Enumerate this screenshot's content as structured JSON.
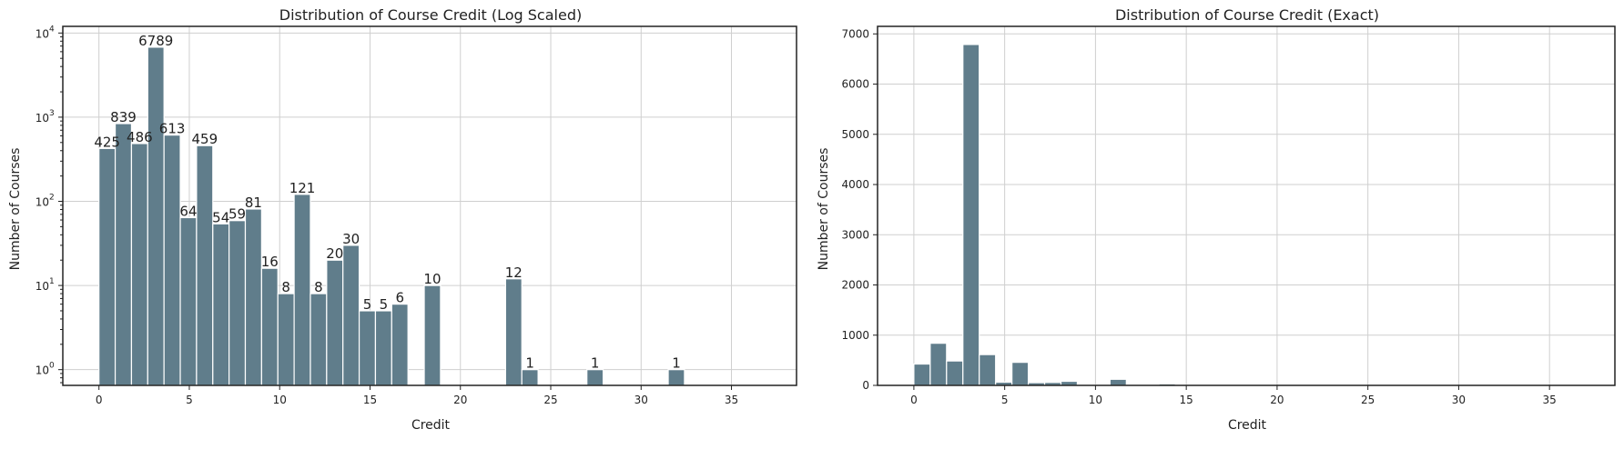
{
  "chart_data": [
    {
      "type": "bar",
      "title": "Distribution of Course Credit (Log Scaled)",
      "xlabel": "Credit",
      "ylabel": "Number of Courses",
      "yscale": "log",
      "xlim": [
        -2,
        38.6
      ],
      "ylim": [
        0.65,
        12000
      ],
      "xticks": [
        0,
        5,
        10,
        15,
        20,
        25,
        30,
        35
      ],
      "yticks": [
        {
          "value": 1,
          "base": "10",
          "exp": "0"
        },
        {
          "value": 10,
          "base": "10",
          "exp": "1"
        },
        {
          "value": 100,
          "base": "10",
          "exp": "2"
        },
        {
          "value": 1000,
          "base": "10",
          "exp": "3"
        },
        {
          "value": 10000,
          "base": "10",
          "exp": "4"
        }
      ],
      "grid": true,
      "bar_color": "#607d8b",
      "bin_width": 0.9,
      "bars": [
        {
          "x": 0,
          "value": 425,
          "label": "425"
        },
        {
          "x": 0.9,
          "value": 839,
          "label": "839"
        },
        {
          "x": 1.8,
          "value": 486,
          "label": "486"
        },
        {
          "x": 2.7,
          "value": 6789,
          "label": "6789"
        },
        {
          "x": 3.6,
          "value": 613,
          "label": "613"
        },
        {
          "x": 4.5,
          "value": 64,
          "label": "64"
        },
        {
          "x": 5.4,
          "value": 459,
          "label": "459"
        },
        {
          "x": 6.3,
          "value": 54,
          "label": "54"
        },
        {
          "x": 7.2,
          "value": 59,
          "label": "59"
        },
        {
          "x": 8.1,
          "value": 81,
          "label": "81"
        },
        {
          "x": 9.0,
          "value": 16,
          "label": "16"
        },
        {
          "x": 9.9,
          "value": 8,
          "label": "8"
        },
        {
          "x": 10.8,
          "value": 121,
          "label": "121"
        },
        {
          "x": 11.7,
          "value": 8,
          "label": "8"
        },
        {
          "x": 12.6,
          "value": 20,
          "label": "20"
        },
        {
          "x": 13.5,
          "value": 30,
          "label": "30"
        },
        {
          "x": 14.4,
          "value": 5,
          "label": "5"
        },
        {
          "x": 15.3,
          "value": 5,
          "label": "5"
        },
        {
          "x": 16.2,
          "value": 6,
          "label": "6"
        },
        {
          "x": 18.0,
          "value": 10,
          "label": "10"
        },
        {
          "x": 22.5,
          "value": 12,
          "label": "12"
        },
        {
          "x": 23.4,
          "value": 1,
          "label": "1"
        },
        {
          "x": 27.0,
          "value": 1,
          "label": "1"
        },
        {
          "x": 31.5,
          "value": 1,
          "label": "1"
        }
      ]
    },
    {
      "type": "bar",
      "title": "Distribution of Course Credit (Exact)",
      "xlabel": "Credit",
      "ylabel": "Number of Courses",
      "yscale": "linear",
      "xlim": [
        -2,
        38.6
      ],
      "ylim": [
        0,
        7150
      ],
      "xticks": [
        0,
        5,
        10,
        15,
        20,
        25,
        30,
        35
      ],
      "yticks": [
        0,
        1000,
        2000,
        3000,
        4000,
        5000,
        6000,
        7000
      ],
      "grid": true,
      "bar_color": "#607d8b",
      "bin_width": 0.9,
      "bars": [
        {
          "x": 0,
          "value": 425
        },
        {
          "x": 0.9,
          "value": 839
        },
        {
          "x": 1.8,
          "value": 486
        },
        {
          "x": 2.7,
          "value": 6789
        },
        {
          "x": 3.6,
          "value": 613
        },
        {
          "x": 4.5,
          "value": 64
        },
        {
          "x": 5.4,
          "value": 459
        },
        {
          "x": 6.3,
          "value": 54
        },
        {
          "x": 7.2,
          "value": 59
        },
        {
          "x": 8.1,
          "value": 81
        },
        {
          "x": 9.0,
          "value": 16
        },
        {
          "x": 9.9,
          "value": 8
        },
        {
          "x": 10.8,
          "value": 121
        },
        {
          "x": 11.7,
          "value": 8
        },
        {
          "x": 12.6,
          "value": 20
        },
        {
          "x": 13.5,
          "value": 30
        },
        {
          "x": 14.4,
          "value": 5
        },
        {
          "x": 15.3,
          "value": 5
        },
        {
          "x": 16.2,
          "value": 6
        },
        {
          "x": 18.0,
          "value": 10
        },
        {
          "x": 22.5,
          "value": 12
        },
        {
          "x": 23.4,
          "value": 1
        },
        {
          "x": 27.0,
          "value": 1
        },
        {
          "x": 31.5,
          "value": 1
        }
      ]
    }
  ]
}
